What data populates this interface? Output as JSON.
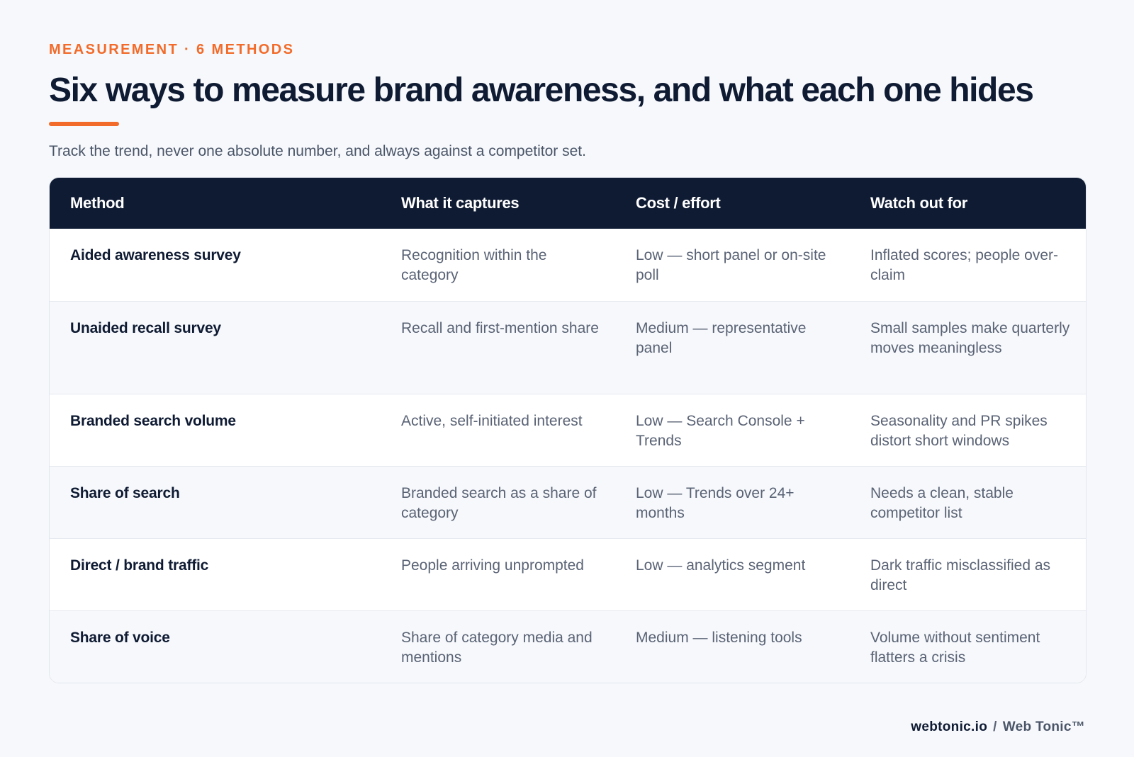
{
  "eyebrow": "MEASUREMENT · 6 METHODS",
  "title": "Six ways to measure brand awareness, and what each one hides",
  "subtitle": "Track the trend, never one absolute number, and always against a competitor set.",
  "table": {
    "headers": [
      "Method",
      "What it captures",
      "Cost / effort",
      "Watch out for"
    ],
    "rows": [
      {
        "method": "Aided awareness survey",
        "captures": "Recognition within the category",
        "cost": "Low — short panel or on-site poll",
        "watch": "Inflated scores; people over-claim"
      },
      {
        "method": "Unaided recall survey",
        "captures": "Recall and first-mention share",
        "cost": "Medium — representative panel",
        "watch": "Small samples make quarterly moves meaningless"
      },
      {
        "method": "Branded search volume",
        "captures": "Active, self-initiated interest",
        "cost": "Low — Search Console + Trends",
        "watch": "Seasonality and PR spikes distort short windows"
      },
      {
        "method": "Share of search",
        "captures": "Branded search as a share of category",
        "cost": "Low — Trends over 24+ months",
        "watch": "Needs a clean, stable competitor list"
      },
      {
        "method": "Direct / brand traffic",
        "captures": "People arriving unprompted",
        "cost": "Low — analytics segment",
        "watch": "Dark traffic misclassified as direct"
      },
      {
        "method": "Share of voice",
        "captures": "Share of category media and mentions",
        "cost": "Medium — listening tools",
        "watch": "Volume without sentiment flatters a crisis"
      }
    ]
  },
  "footer": {
    "domain": "webtonic.io",
    "separator": "/",
    "brand": "Web Tonic™"
  },
  "colors": {
    "accent": "#f26b2a",
    "header_bg": "#0f1b33",
    "page_bg": "#f6f8fb"
  }
}
